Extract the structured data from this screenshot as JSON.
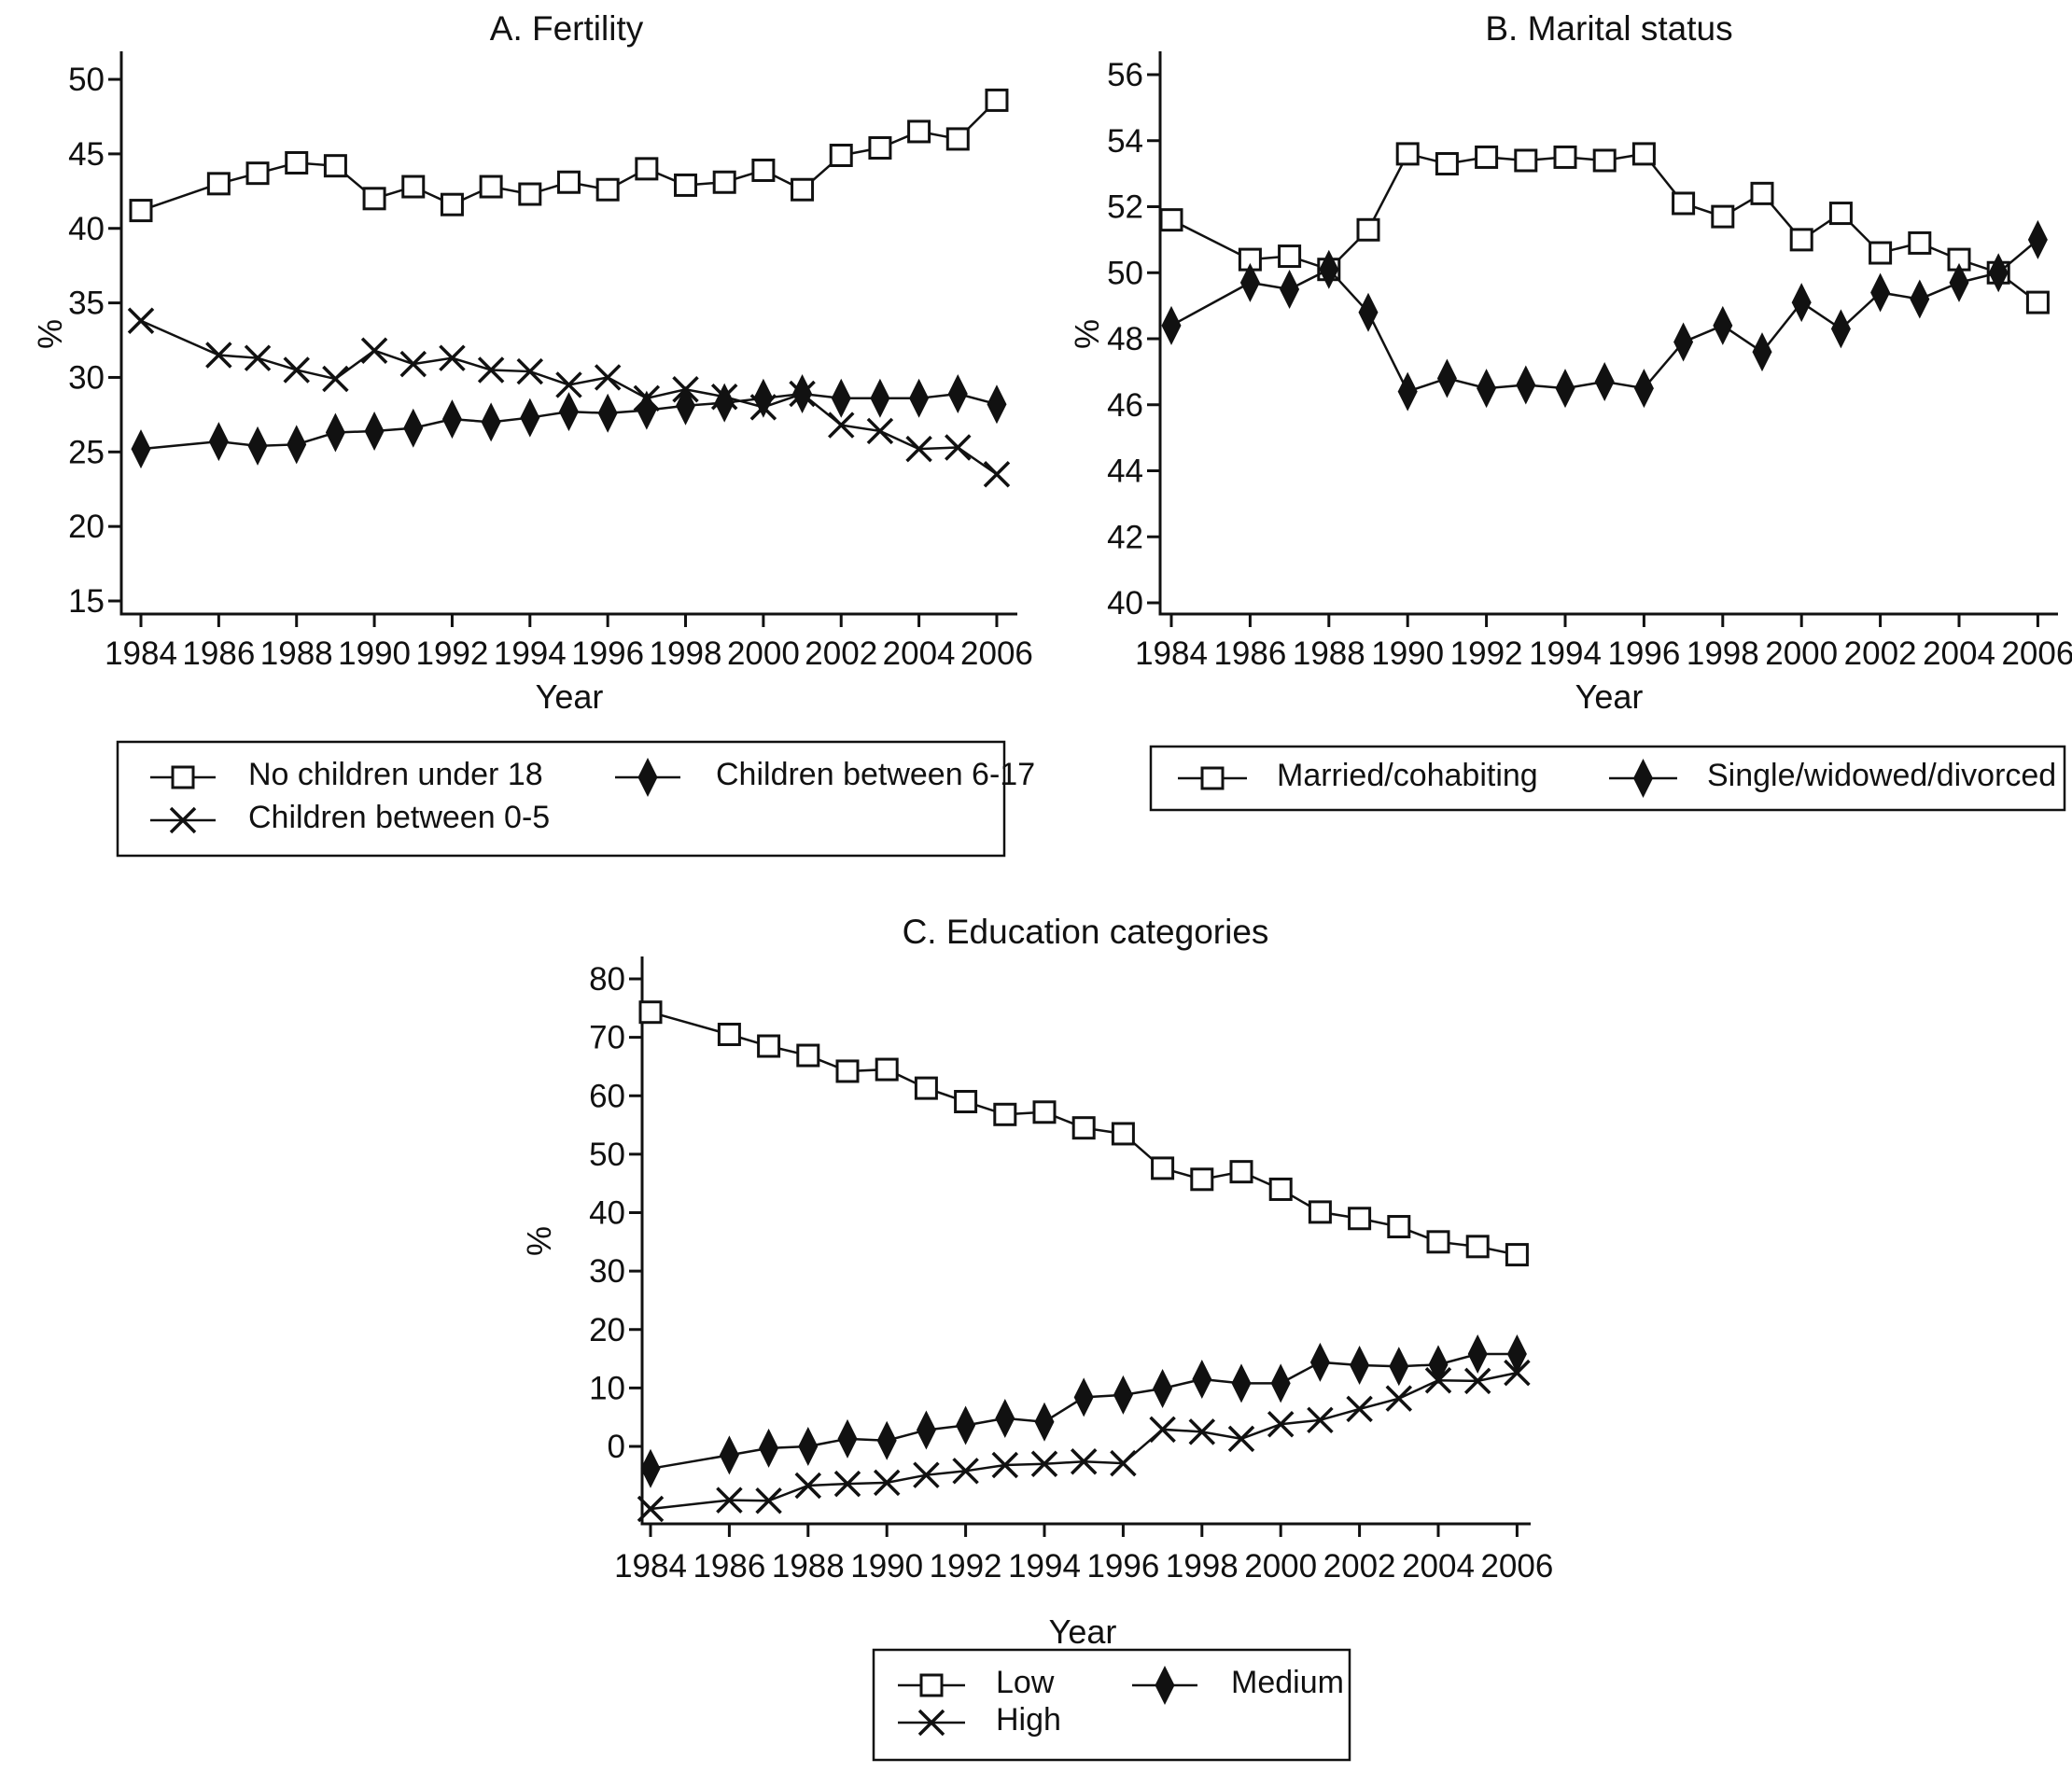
{
  "figure": {
    "background": "#ffffff",
    "ink": "#111111"
  },
  "chart_data": [
    {
      "id": "fertility",
      "type": "line",
      "title": "A. Fertility",
      "xlabel": "Year",
      "ylabel": "%",
      "x": [
        1984,
        1986,
        1987,
        1988,
        1989,
        1990,
        1991,
        1992,
        1993,
        1994,
        1995,
        1996,
        1997,
        1998,
        1999,
        2000,
        2001,
        2002,
        2003,
        2004,
        2005,
        2006
      ],
      "xticks": [
        1984,
        1986,
        1988,
        1990,
        1992,
        1994,
        1996,
        1998,
        2000,
        2002,
        2004,
        2006
      ],
      "yticks": [
        15,
        20,
        25,
        30,
        35,
        40,
        45,
        50
      ],
      "ylim": [
        14,
        52
      ],
      "grid": false,
      "legend_position": "below",
      "series": [
        {
          "name": "No children under 18",
          "marker": "square",
          "values": [
            41.2,
            43.0,
            43.7,
            44.4,
            44.2,
            42.0,
            42.8,
            41.6,
            42.8,
            42.3,
            43.1,
            42.6,
            44.0,
            42.9,
            43.1,
            43.9,
            42.6,
            44.9,
            45.4,
            46.5,
            46.0,
            48.6
          ]
        },
        {
          "name": "Children between 0-5",
          "marker": "x",
          "values": [
            33.8,
            31.5,
            31.3,
            30.5,
            29.9,
            31.8,
            30.9,
            31.3,
            30.5,
            30.4,
            29.5,
            30.0,
            28.6,
            29.2,
            28.7,
            28.0,
            28.9,
            26.8,
            26.4,
            25.2,
            25.3,
            23.5
          ]
        },
        {
          "name": "Children between 6-17",
          "marker": "diamond",
          "values": [
            25.2,
            25.7,
            25.4,
            25.5,
            26.3,
            26.4,
            26.6,
            27.2,
            27.0,
            27.3,
            27.7,
            27.6,
            27.8,
            28.1,
            28.3,
            28.6,
            28.9,
            28.6,
            28.6,
            28.6,
            28.9,
            28.2
          ]
        }
      ]
    },
    {
      "id": "marital",
      "type": "line",
      "title": "B. Marital status",
      "xlabel": "Year",
      "ylabel": "%",
      "x": [
        1984,
        1986,
        1987,
        1988,
        1989,
        1990,
        1991,
        1992,
        1993,
        1994,
        1995,
        1996,
        1997,
        1998,
        1999,
        2000,
        2001,
        2002,
        2003,
        2004,
        2005,
        2006
      ],
      "xticks": [
        1984,
        1986,
        1988,
        1990,
        1992,
        1994,
        1996,
        1998,
        2000,
        2002,
        2004,
        2006
      ],
      "yticks": [
        40,
        42,
        44,
        46,
        48,
        50,
        52,
        54,
        56
      ],
      "ylim": [
        39.6,
        56.7
      ],
      "grid": false,
      "legend_position": "below",
      "series": [
        {
          "name": "Married/cohabiting",
          "marker": "square",
          "values": [
            51.6,
            50.4,
            50.5,
            50.1,
            51.3,
            53.6,
            53.3,
            53.5,
            53.4,
            53.5,
            53.4,
            53.6,
            52.1,
            51.7,
            52.4,
            51.0,
            51.8,
            50.6,
            50.9,
            50.4,
            50.0,
            49.1
          ]
        },
        {
          "name": "Single/widowed/divorced",
          "marker": "diamond",
          "values": [
            48.4,
            49.7,
            49.5,
            50.1,
            48.8,
            46.4,
            46.8,
            46.5,
            46.6,
            46.5,
            46.7,
            46.5,
            47.9,
            48.4,
            47.6,
            49.1,
            48.3,
            49.4,
            49.2,
            49.7,
            50.0,
            51.0
          ]
        }
      ]
    },
    {
      "id": "education",
      "type": "line",
      "title": "C. Education categories",
      "xlabel": "Year",
      "ylabel": "%",
      "x": [
        1984,
        1986,
        1987,
        1988,
        1989,
        1990,
        1991,
        1992,
        1993,
        1994,
        1995,
        1996,
        1997,
        1998,
        1999,
        2000,
        2001,
        2002,
        2003,
        2004,
        2005,
        2006
      ],
      "xticks": [
        1984,
        1986,
        1988,
        1990,
        1992,
        1994,
        1996,
        1998,
        2000,
        2002,
        2004,
        2006
      ],
      "yticks": [
        0,
        10,
        20,
        30,
        40,
        50,
        60,
        70,
        80
      ],
      "ylim": [
        -14,
        85
      ],
      "grid": false,
      "legend_position": "below",
      "series": [
        {
          "name": "Low",
          "marker": "square",
          "values": [
            74.3,
            70.5,
            68.5,
            66.9,
            64.2,
            64.5,
            61.3,
            59.0,
            56.8,
            57.2,
            54.5,
            53.5,
            47.6,
            45.7,
            47.0,
            44.0,
            40.1,
            39.0,
            37.6,
            35.0,
            34.2,
            32.8
          ]
        },
        {
          "name": "Medium",
          "marker": "diamond",
          "values": [
            -3.8,
            -1.5,
            -0.3,
            0.0,
            1.3,
            1.0,
            2.8,
            3.6,
            4.8,
            4.2,
            8.4,
            8.8,
            9.9,
            11.5,
            10.8,
            10.8,
            14.4,
            13.9,
            13.7,
            14.0,
            15.8,
            15.8
          ]
        },
        {
          "name": "High",
          "marker": "x",
          "values": [
            -10.7,
            -9.2,
            -9.3,
            -6.7,
            -6.4,
            -6.2,
            -4.9,
            -4.2,
            -3.2,
            -3.0,
            -2.6,
            -2.9,
            2.9,
            2.5,
            1.3,
            3.8,
            4.5,
            6.4,
            8.2,
            11.3,
            11.2,
            12.6
          ]
        }
      ]
    }
  ]
}
